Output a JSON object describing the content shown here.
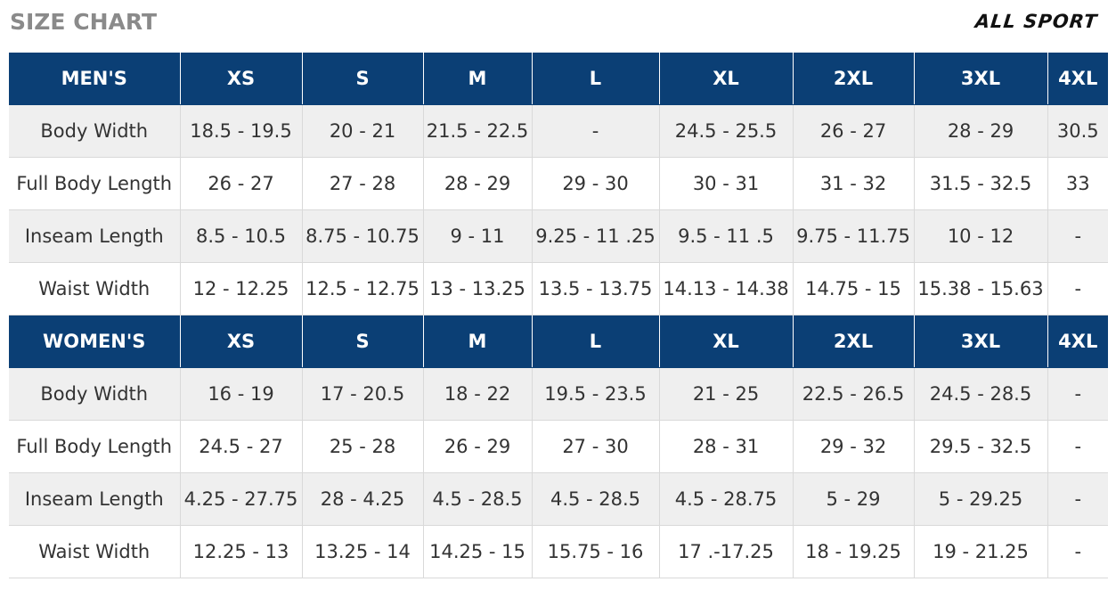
{
  "header": {
    "title": "SIZE CHART",
    "brand": "ALL SPORT"
  },
  "sections": [
    {
      "name": "MEN'S",
      "sizes": [
        "XS",
        "S",
        "M",
        "L",
        "XL",
        "2XL",
        "3XL",
        "4XL"
      ],
      "rows": [
        {
          "label": "Body Width",
          "values": [
            "18.5 - 19.5",
            "20 - 21",
            "21.5 - 22.5",
            "-",
            "24.5 - 25.5",
            "26 - 27",
            "28 - 29",
            "30.5"
          ]
        },
        {
          "label": "Full Body Length",
          "values": [
            "26 - 27",
            "27 - 28",
            "28 - 29",
            "29 - 30",
            "30 - 31",
            "31 - 32",
            "31.5 - 32.5",
            "33"
          ]
        },
        {
          "label": "Inseam Length",
          "values": [
            "8.5 - 10.5",
            "8.75 - 10.75",
            "9 - 11",
            "9.25 - 11 .25",
            "9.5 - 11 .5",
            "9.75 - 11.75",
            "10 - 12",
            "-"
          ]
        },
        {
          "label": "Waist Width",
          "values": [
            "12 - 12.25",
            "12.5 - 12.75",
            "13 - 13.25",
            "13.5 - 13.75",
            "14.13 - 14.38",
            "14.75 - 15",
            "15.38 - 15.63",
            "-"
          ]
        }
      ]
    },
    {
      "name": "WOMEN'S",
      "sizes": [
        "XS",
        "S",
        "M",
        "L",
        "XL",
        "2XL",
        "3XL",
        "4XL"
      ],
      "rows": [
        {
          "label": "Body Width",
          "values": [
            "16 - 19",
            "17 - 20.5",
            "18 - 22",
            "19.5 - 23.5",
            "21 - 25",
            "22.5 - 26.5",
            "24.5 - 28.5",
            "-"
          ]
        },
        {
          "label": "Full Body Length",
          "values": [
            "24.5 - 27",
            "25 - 28",
            "26 - 29",
            "27 - 30",
            "28 - 31",
            "29 - 32",
            "29.5 - 32.5",
            "-"
          ]
        },
        {
          "label": "Inseam Length",
          "values": [
            "4.25 - 27.75",
            "28 - 4.25",
            "4.5 - 28.5",
            "4.5 - 28.5",
            "4.5 - 28.75",
            "5 - 29",
            "5 - 29.25",
            "-"
          ]
        },
        {
          "label": "Waist Width",
          "values": [
            "12.25 - 13",
            "13.25 - 14",
            "14.25 - 15",
            "15.75 - 16",
            "17 .-17.25",
            "18 - 19.25",
            "19 - 21.25",
            "-"
          ]
        }
      ]
    }
  ],
  "colors": {
    "header_bg": "#0b3f75",
    "header_text": "#ffffff",
    "stripe": "#efefef",
    "title_gray": "#8a8a8a"
  }
}
